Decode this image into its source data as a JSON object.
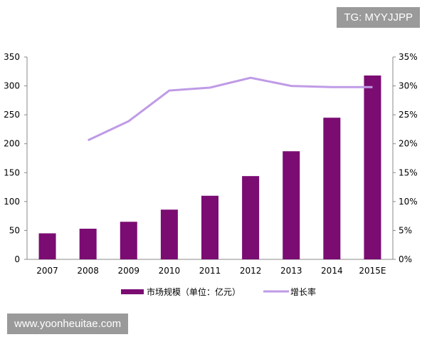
{
  "watermarks": {
    "top": "TG: MYYJJPP",
    "bottom": "www.yoonheuitae.com"
  },
  "chart_data": {
    "type": "bar+line",
    "categories": [
      "2007",
      "2008",
      "2009",
      "2010",
      "2011",
      "2012",
      "2013",
      "2014",
      "2015E"
    ],
    "series": [
      {
        "name": "市场规模（单位：亿元）",
        "type": "bar",
        "axis": "left",
        "color": "#7b0c72",
        "values": [
          45,
          53,
          65,
          86,
          110,
          144,
          187,
          245,
          318
        ]
      },
      {
        "name": "增长率",
        "type": "line",
        "axis": "right",
        "color": "#bf9be6",
        "values": [
          null,
          20.6,
          23.9,
          29.2,
          29.7,
          31.4,
          30.0,
          29.8,
          29.8
        ]
      }
    ],
    "y_left": {
      "range": [
        0,
        350
      ],
      "ticks": [
        "0",
        "50",
        "100",
        "150",
        "200",
        "250",
        "300",
        "350"
      ]
    },
    "y_right": {
      "range": [
        0,
        35
      ],
      "ticks": [
        "0%",
        "5%",
        "10%",
        "15%",
        "20%",
        "25%",
        "30%",
        "35%"
      ]
    },
    "grid": false,
    "legend": "bottom"
  }
}
